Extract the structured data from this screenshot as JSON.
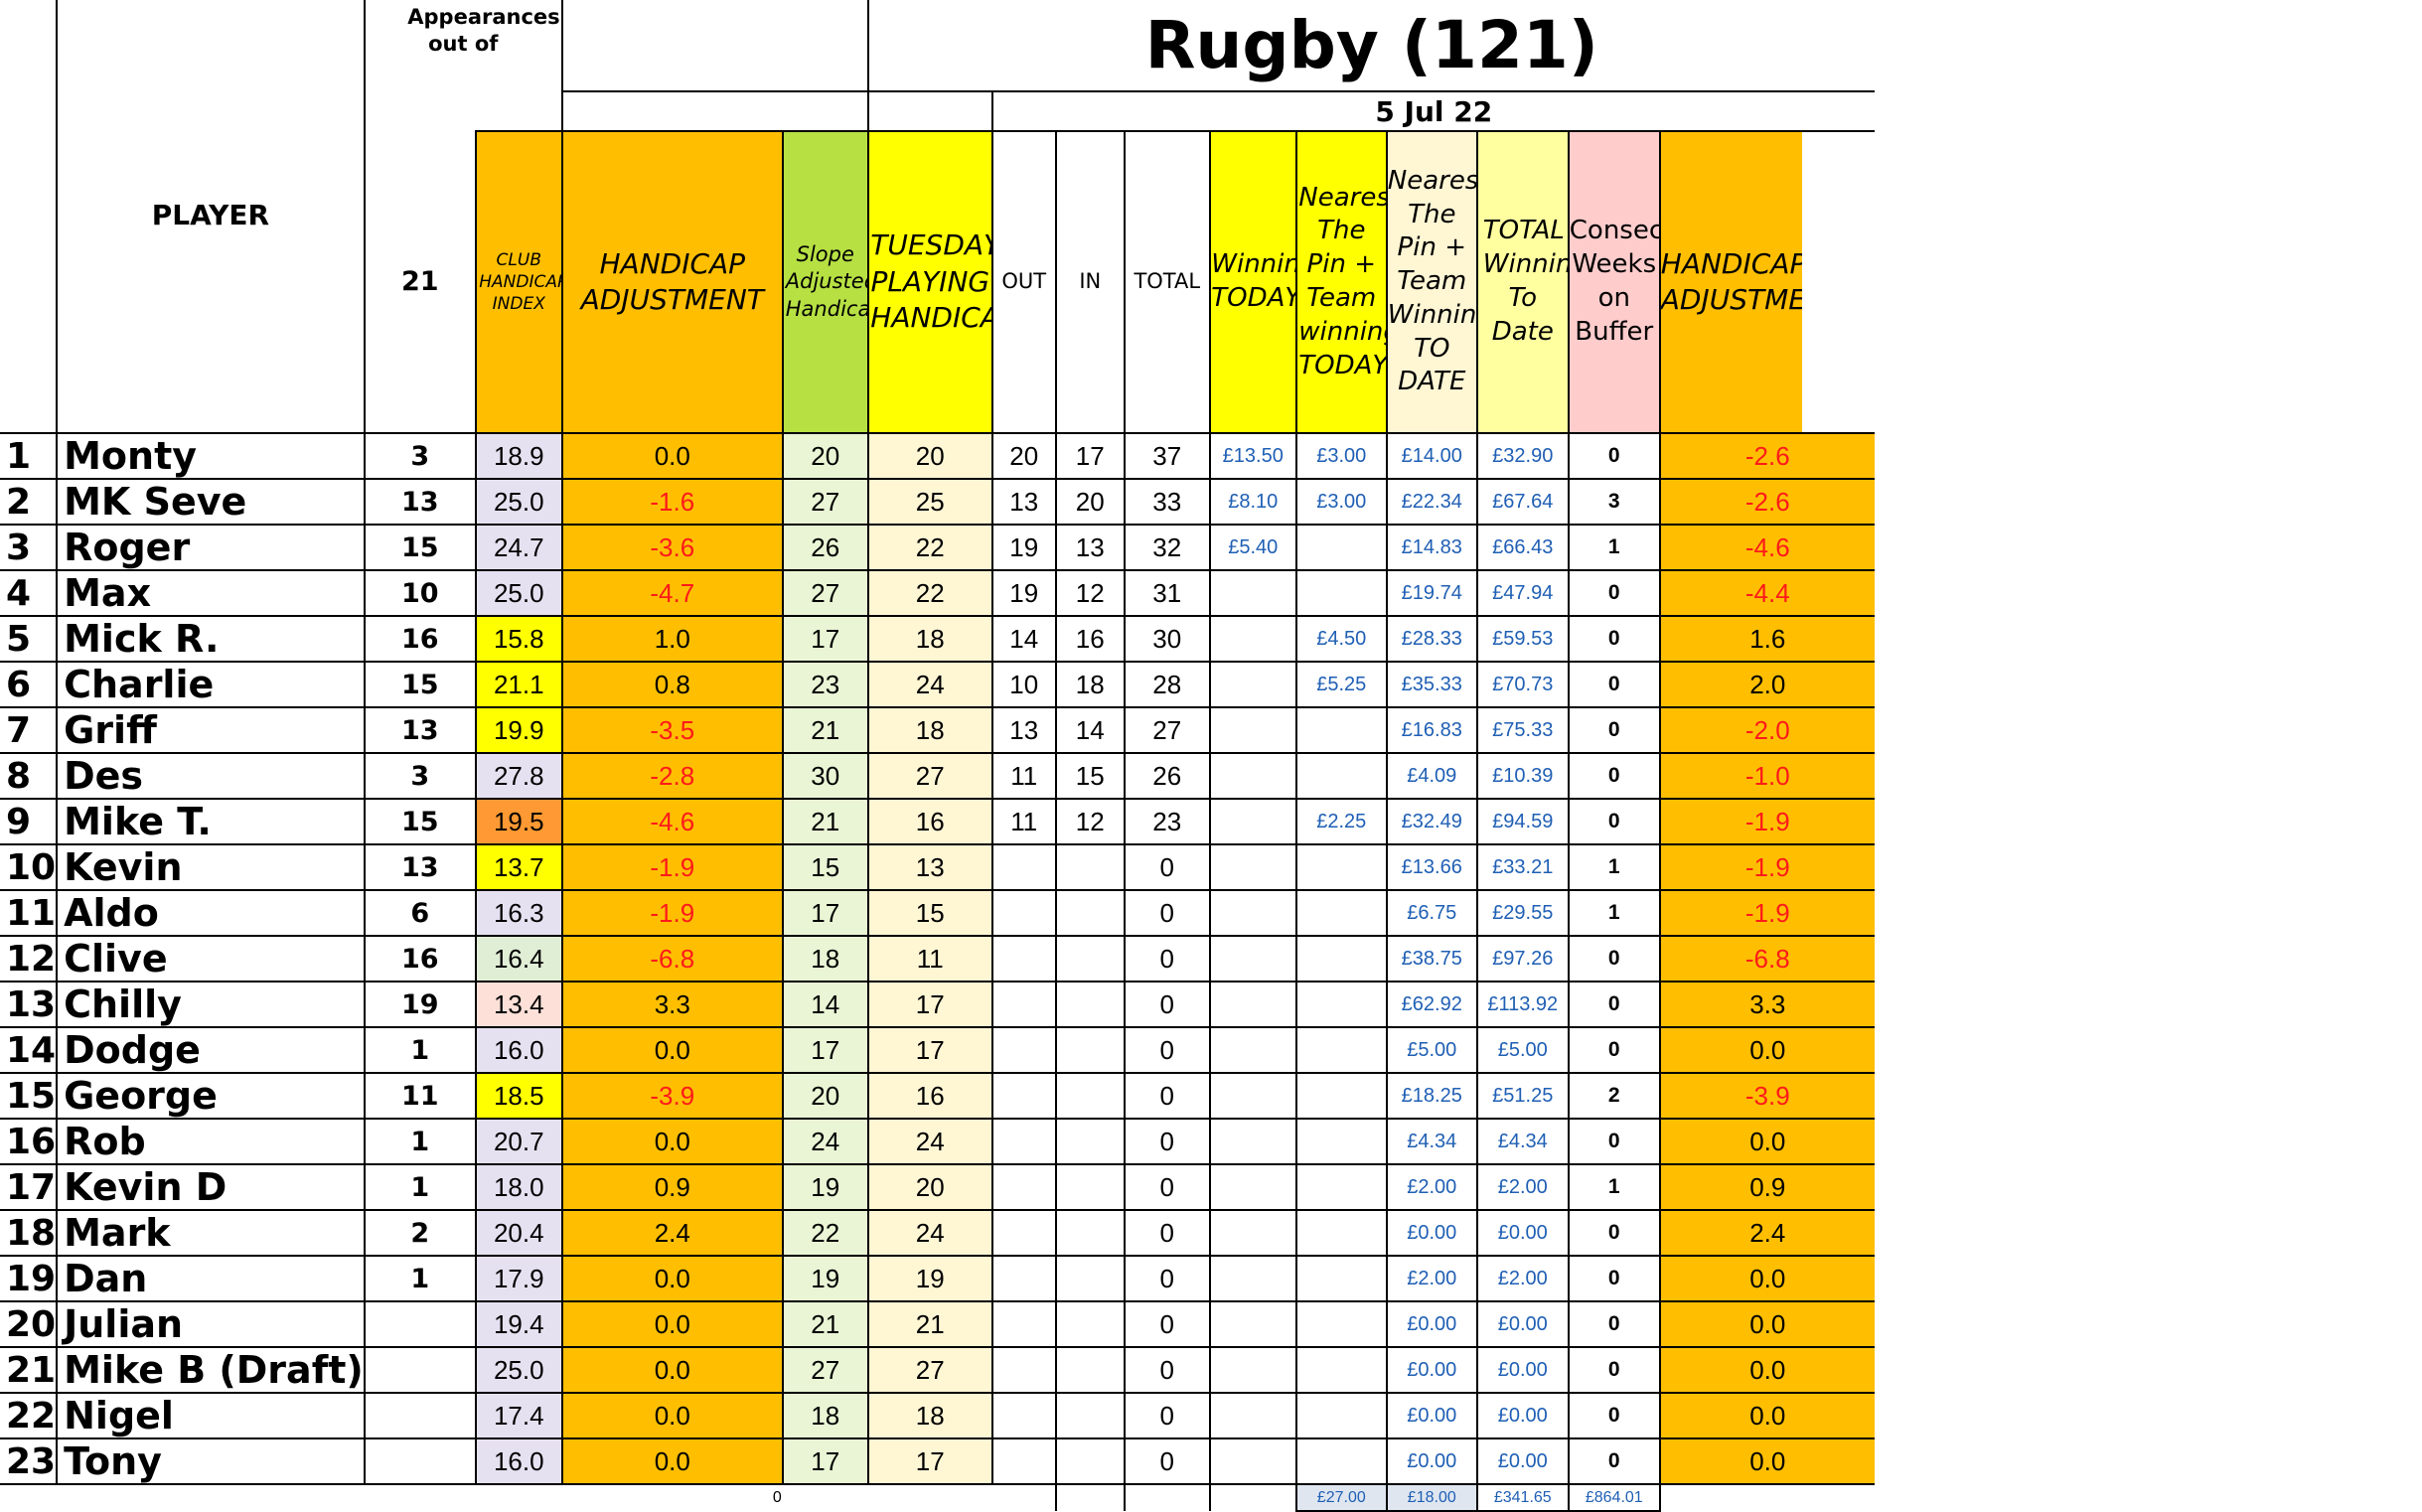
{
  "title": "Rugby (121)",
  "date": "5 Jul 22",
  "headers": {
    "player": "PLAYER",
    "appearances_label": "Appearances out of",
    "appearances_total": "21",
    "club_index": "CLUB HANDICAP INDEX",
    "handicap_adjustment": "HANDICAP ADJUSTMENT",
    "slope": "Slope Adjusted Handicap",
    "tuesday": "TUESDAY PLAYING HANDICAP",
    "out": "OUT",
    "in": "IN",
    "total": "TOTAL",
    "winnings_today": "Winnings TODAY",
    "ntp_today": "Nearest The Pin + Team winnings TODAY",
    "ntp_to_date": "Nearest The Pin + Team Winnings TO DATE",
    "total_to_date": "TOTAL Winnings To Date",
    "consec": "Consec Weeks on Buffer",
    "handicap_adjustment_2": "HANDICAP ADJUSTMENT"
  },
  "rows": [
    {
      "n": "1",
      "name": "Monty",
      "app": "3",
      "idx": "18.9",
      "adj": "0.0",
      "slope": "20",
      "tue": "20",
      "out": "20",
      "in": "17",
      "tot": "37",
      "win": "£13.50",
      "ntp": "£3.00",
      "ntpd": "£14.00",
      "ttd": "£32.90",
      "cw": "0",
      "adj2": "-2.6"
    },
    {
      "n": "2",
      "name": "MK Seve",
      "app": "13",
      "idx": "25.0",
      "adj": "-1.6",
      "slope": "27",
      "tue": "25",
      "out": "13",
      "in": "20",
      "tot": "33",
      "win": "£8.10",
      "ntp": "£3.00",
      "ntpd": "£22.34",
      "ttd": "£67.64",
      "cw": "3",
      "adj2": "-2.6"
    },
    {
      "n": "3",
      "name": "Roger",
      "app": "15",
      "idx": "24.7",
      "adj": "-3.6",
      "slope": "26",
      "tue": "22",
      "out": "19",
      "in": "13",
      "tot": "32",
      "win": "£5.40",
      "ntp": "",
      "ntpd": "£14.83",
      "ttd": "£66.43",
      "cw": "1",
      "adj2": "-4.6"
    },
    {
      "n": "4",
      "name": "Max",
      "app": "10",
      "idx": "25.0",
      "adj": "-4.7",
      "slope": "27",
      "tue": "22",
      "out": "19",
      "in": "12",
      "tot": "31",
      "win": "",
      "ntp": "",
      "ntpd": "£19.74",
      "ttd": "£47.94",
      "cw": "0",
      "adj2": "-4.4"
    },
    {
      "n": "5",
      "name": "Mick R.",
      "app": "16",
      "idx": "15.8",
      "adj": "1.0",
      "slope": "17",
      "tue": "18",
      "out": "14",
      "in": "16",
      "tot": "30",
      "win": "",
      "ntp": "£4.50",
      "ntpd": "£28.33",
      "ttd": "£59.53",
      "cw": "0",
      "adj2": "1.6"
    },
    {
      "n": "6",
      "name": "Charlie",
      "app": "15",
      "idx": "21.1",
      "adj": "0.8",
      "slope": "23",
      "tue": "24",
      "out": "10",
      "in": "18",
      "tot": "28",
      "win": "",
      "ntp": "£5.25",
      "ntpd": "£35.33",
      "ttd": "£70.73",
      "cw": "0",
      "adj2": "2.0"
    },
    {
      "n": "7",
      "name": "Griff",
      "app": "13",
      "idx": "19.9",
      "adj": "-3.5",
      "slope": "21",
      "tue": "18",
      "out": "13",
      "in": "14",
      "tot": "27",
      "win": "",
      "ntp": "",
      "ntpd": "£16.83",
      "ttd": "£75.33",
      "cw": "0",
      "adj2": "-2.0"
    },
    {
      "n": "8",
      "name": "Des",
      "app": "3",
      "idx": "27.8",
      "adj": "-2.8",
      "slope": "30",
      "tue": "27",
      "out": "11",
      "in": "15",
      "tot": "26",
      "win": "",
      "ntp": "",
      "ntpd": "£4.09",
      "ttd": "£10.39",
      "cw": "0",
      "adj2": "-1.0"
    },
    {
      "n": "9",
      "name": "Mike T.",
      "app": "15",
      "idx": "19.5",
      "adj": "-4.6",
      "slope": "21",
      "tue": "16",
      "out": "11",
      "in": "12",
      "tot": "23",
      "win": "",
      "ntp": "£2.25",
      "ntpd": "£32.49",
      "ttd": "£94.59",
      "cw": "0",
      "adj2": "-1.9"
    },
    {
      "n": "10",
      "name": "Kevin",
      "app": "13",
      "idx": "13.7",
      "adj": "-1.9",
      "slope": "15",
      "tue": "13",
      "out": "",
      "in": "",
      "tot": "0",
      "win": "",
      "ntp": "",
      "ntpd": "£13.66",
      "ttd": "£33.21",
      "cw": "1",
      "adj2": "-1.9"
    },
    {
      "n": "11",
      "name": "Aldo",
      "app": "6",
      "idx": "16.3",
      "adj": "-1.9",
      "slope": "17",
      "tue": "15",
      "out": "",
      "in": "",
      "tot": "0",
      "win": "",
      "ntp": "",
      "ntpd": "£6.75",
      "ttd": "£29.55",
      "cw": "1",
      "adj2": "-1.9"
    },
    {
      "n": "12",
      "name": "Clive",
      "app": "16",
      "idx": "16.4",
      "adj": "-6.8",
      "slope": "18",
      "tue": "11",
      "out": "",
      "in": "",
      "tot": "0",
      "win": "",
      "ntp": "",
      "ntpd": "£38.75",
      "ttd": "£97.26",
      "cw": "0",
      "adj2": "-6.8"
    },
    {
      "n": "13",
      "name": "Chilly",
      "app": "19",
      "idx": "13.4",
      "adj": "3.3",
      "slope": "14",
      "tue": "17",
      "out": "",
      "in": "",
      "tot": "0",
      "win": "",
      "ntp": "",
      "ntpd": "£62.92",
      "ttd": "£113.92",
      "cw": "0",
      "adj2": "3.3"
    },
    {
      "n": "14",
      "name": "Dodge",
      "app": "1",
      "idx": "16.0",
      "adj": "0.0",
      "slope": "17",
      "tue": "17",
      "out": "",
      "in": "",
      "tot": "0",
      "win": "",
      "ntp": "",
      "ntpd": "£5.00",
      "ttd": "£5.00",
      "cw": "0",
      "adj2": "0.0"
    },
    {
      "n": "15",
      "name": "George",
      "app": "11",
      "idx": "18.5",
      "adj": "-3.9",
      "slope": "20",
      "tue": "16",
      "out": "",
      "in": "",
      "tot": "0",
      "win": "",
      "ntp": "",
      "ntpd": "£18.25",
      "ttd": "£51.25",
      "cw": "2",
      "adj2": "-3.9"
    },
    {
      "n": "16",
      "name": "Rob",
      "app": "1",
      "idx": "20.7",
      "adj": "0.0",
      "slope": "24",
      "tue": "24",
      "out": "",
      "in": "",
      "tot": "0",
      "win": "",
      "ntp": "",
      "ntpd": "£4.34",
      "ttd": "£4.34",
      "cw": "0",
      "adj2": "0.0"
    },
    {
      "n": "17",
      "name": "Kevin D",
      "app": "1",
      "idx": "18.0",
      "adj": "0.9",
      "slope": "19",
      "tue": "20",
      "out": "",
      "in": "",
      "tot": "0",
      "win": "",
      "ntp": "",
      "ntpd": "£2.00",
      "ttd": "£2.00",
      "cw": "1",
      "adj2": "0.9"
    },
    {
      "n": "18",
      "name": "Mark",
      "app": "2",
      "idx": "20.4",
      "adj": "2.4",
      "slope": "22",
      "tue": "24",
      "out": "",
      "in": "",
      "tot": "0",
      "win": "",
      "ntp": "",
      "ntpd": "£0.00",
      "ttd": "£0.00",
      "cw": "0",
      "adj2": "2.4"
    },
    {
      "n": "19",
      "name": "Dan",
      "app": "1",
      "idx": "17.9",
      "adj": "0.0",
      "slope": "19",
      "tue": "19",
      "out": "",
      "in": "",
      "tot": "0",
      "win": "",
      "ntp": "",
      "ntpd": "£2.00",
      "ttd": "£2.00",
      "cw": "0",
      "adj2": "0.0"
    },
    {
      "n": "20",
      "name": "Julian",
      "app": "",
      "idx": "19.4",
      "adj": "0.0",
      "slope": "21",
      "tue": "21",
      "out": "",
      "in": "",
      "tot": "0",
      "win": "",
      "ntp": "",
      "ntpd": "£0.00",
      "ttd": "£0.00",
      "cw": "0",
      "adj2": "0.0"
    },
    {
      "n": "21",
      "name": "Mike B (Draft)",
      "app": "",
      "idx": "25.0",
      "adj": "0.0",
      "slope": "27",
      "tue": "27",
      "out": "",
      "in": "",
      "tot": "0",
      "win": "",
      "ntp": "",
      "ntpd": "£0.00",
      "ttd": "£0.00",
      "cw": "0",
      "adj2": "0.0"
    },
    {
      "n": "22",
      "name": "Nigel",
      "app": "",
      "idx": "17.4",
      "adj": "0.0",
      "slope": "18",
      "tue": "18",
      "out": "",
      "in": "",
      "tot": "0",
      "win": "",
      "ntp": "",
      "ntpd": "£0.00",
      "ttd": "£0.00",
      "cw": "0",
      "adj2": "0.0"
    },
    {
      "n": "23",
      "name": "Tony",
      "app": "",
      "idx": "16.0",
      "adj": "0.0",
      "slope": "17",
      "tue": "17",
      "out": "",
      "in": "",
      "tot": "0",
      "win": "",
      "ntp": "",
      "ntpd": "£0.00",
      "ttd": "£0.00",
      "cw": "0",
      "adj2": "0.0"
    }
  ],
  "index_colors": [
    "#e6e1f0",
    "#e6e1f0",
    "#e6e1f0",
    "#e6e1f0",
    "#ffff00",
    "#ffff00",
    "#ffff00",
    "#e6e1f0",
    "#ff9933",
    "#ffff00",
    "#e6e1f0",
    "#e1eed6",
    "#fde0d8",
    "#e6e1f0",
    "#ffff00",
    "#e6e1f0",
    "#e6e1f0",
    "#e6e1f0",
    "#e6e1f0",
    "#e6e1f0",
    "#e6e1f0",
    "#e6e1f0",
    "#e6e1f0"
  ],
  "footer": {
    "zero": "0",
    "winnings_today_total": "£27.00",
    "ntp_today_total": "£18.00",
    "ntp_to_date_total": "£341.65",
    "total_to_date_total": "£864.01"
  }
}
